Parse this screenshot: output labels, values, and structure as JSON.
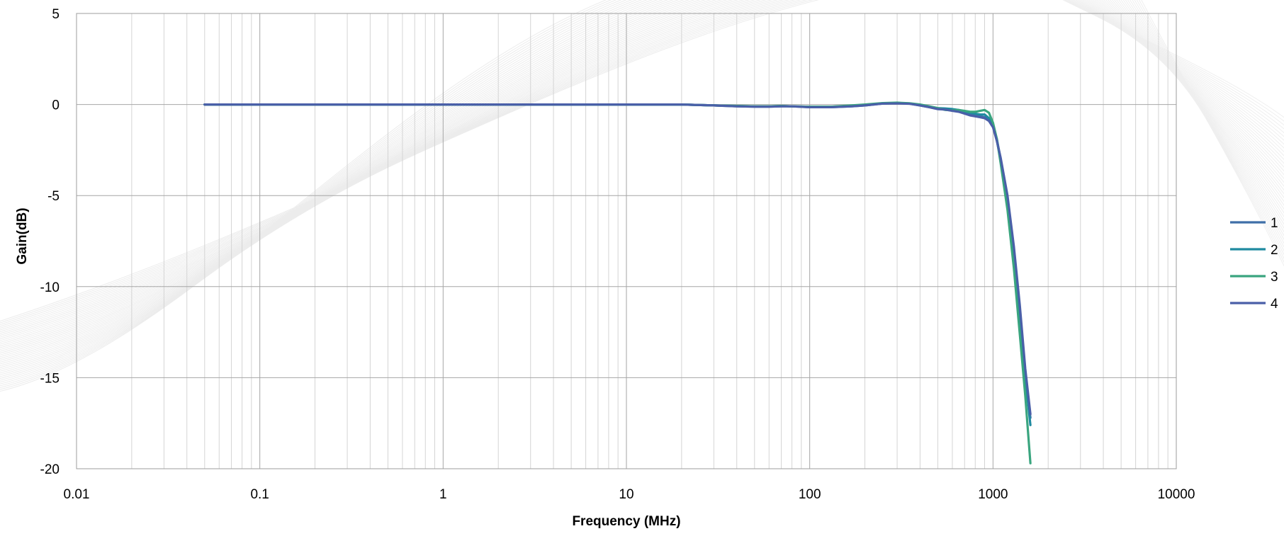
{
  "chart_data": {
    "type": "line",
    "title": "",
    "xlabel": "Frequency (MHz)",
    "ylabel": "Gain(dB)",
    "x_scale": "log",
    "xlim": [
      0.01,
      10000
    ],
    "ylim": [
      -20,
      5
    ],
    "x_ticks": [
      0.01,
      0.1,
      1,
      10,
      100,
      1000,
      10000
    ],
    "x_tick_labels": [
      "0.01",
      "0.1",
      "1",
      "10",
      "100",
      "1000",
      "10000"
    ],
    "y_ticks": [
      5,
      0,
      -5,
      -10,
      -15,
      -20
    ],
    "y_tick_labels": [
      "5",
      "0",
      "-5",
      "-10",
      "-15",
      "-20"
    ],
    "grid": true,
    "legend_position": "right",
    "series": [
      {
        "name": "1",
        "color": "#3f6fa8",
        "x": [
          0.05,
          0.1,
          1,
          10,
          20,
          30,
          40,
          50,
          60,
          70,
          80,
          100,
          130,
          170,
          200,
          250,
          300,
          350,
          400,
          450,
          500,
          550,
          600,
          650,
          700,
          750,
          800,
          850,
          900,
          950,
          1000,
          1050,
          1100,
          1200,
          1300,
          1400,
          1500,
          1600
        ],
        "y": [
          0,
          0,
          0,
          0,
          0,
          -0.05,
          -0.1,
          -0.12,
          -0.12,
          -0.1,
          -0.1,
          -0.15,
          -0.15,
          -0.1,
          -0.05,
          0.05,
          0.07,
          0.05,
          -0.05,
          -0.15,
          -0.25,
          -0.25,
          -0.3,
          -0.35,
          -0.45,
          -0.55,
          -0.6,
          -0.65,
          -0.7,
          -0.85,
          -1.2,
          -2.0,
          -3.0,
          -5.2,
          -8.0,
          -11.2,
          -14.8,
          -17.2
        ]
      },
      {
        "name": "2",
        "color": "#1f8aa0",
        "x": [
          0.05,
          0.1,
          1,
          10,
          20,
          30,
          40,
          50,
          60,
          70,
          80,
          100,
          130,
          170,
          200,
          250,
          300,
          350,
          400,
          450,
          500,
          550,
          600,
          650,
          700,
          750,
          800,
          850,
          900,
          950,
          1000,
          1050,
          1100,
          1200,
          1300,
          1400,
          1500,
          1600
        ],
        "y": [
          0,
          0,
          0,
          0,
          0,
          -0.05,
          -0.08,
          -0.1,
          -0.1,
          -0.08,
          -0.1,
          -0.12,
          -0.12,
          -0.08,
          -0.03,
          0.07,
          0.08,
          0.06,
          -0.02,
          -0.12,
          -0.2,
          -0.22,
          -0.25,
          -0.3,
          -0.4,
          -0.45,
          -0.5,
          -0.55,
          -0.55,
          -0.75,
          -1.1,
          -1.9,
          -3.0,
          -5.4,
          -8.4,
          -11.8,
          -15.0,
          -17.6
        ]
      },
      {
        "name": "3",
        "color": "#3aa57f",
        "x": [
          0.05,
          0.1,
          1,
          10,
          20,
          30,
          40,
          50,
          60,
          70,
          80,
          100,
          130,
          170,
          200,
          250,
          300,
          350,
          400,
          450,
          500,
          550,
          600,
          650,
          700,
          750,
          800,
          850,
          900,
          950,
          1000,
          1050,
          1100,
          1200,
          1300,
          1400,
          1500,
          1600
        ],
        "y": [
          0,
          0,
          0,
          0,
          0,
          -0.05,
          -0.08,
          -0.1,
          -0.1,
          -0.08,
          -0.1,
          -0.12,
          -0.12,
          -0.05,
          0.0,
          0.08,
          0.1,
          0.07,
          0.0,
          -0.1,
          -0.2,
          -0.3,
          -0.32,
          -0.3,
          -0.35,
          -0.4,
          -0.4,
          -0.35,
          -0.3,
          -0.45,
          -1.0,
          -1.9,
          -3.2,
          -5.8,
          -9.0,
          -12.6,
          -16.0,
          -19.7
        ]
      },
      {
        "name": "4",
        "color": "#4a5fa8",
        "x": [
          0.05,
          0.1,
          1,
          10,
          20,
          30,
          40,
          50,
          60,
          70,
          80,
          100,
          130,
          170,
          200,
          250,
          300,
          350,
          400,
          450,
          500,
          550,
          600,
          650,
          700,
          750,
          800,
          850,
          900,
          950,
          1000,
          1050,
          1100,
          1200,
          1300,
          1400,
          1500,
          1600
        ],
        "y": [
          0,
          0,
          0,
          0,
          0,
          -0.05,
          -0.1,
          -0.12,
          -0.12,
          -0.1,
          -0.1,
          -0.15,
          -0.15,
          -0.1,
          -0.05,
          0.05,
          0.06,
          0.04,
          -0.05,
          -0.15,
          -0.25,
          -0.28,
          -0.35,
          -0.4,
          -0.5,
          -0.6,
          -0.65,
          -0.7,
          -0.75,
          -0.9,
          -1.25,
          -2.0,
          -2.9,
          -5.0,
          -7.8,
          -11.0,
          -14.5,
          -17.0
        ]
      }
    ]
  }
}
